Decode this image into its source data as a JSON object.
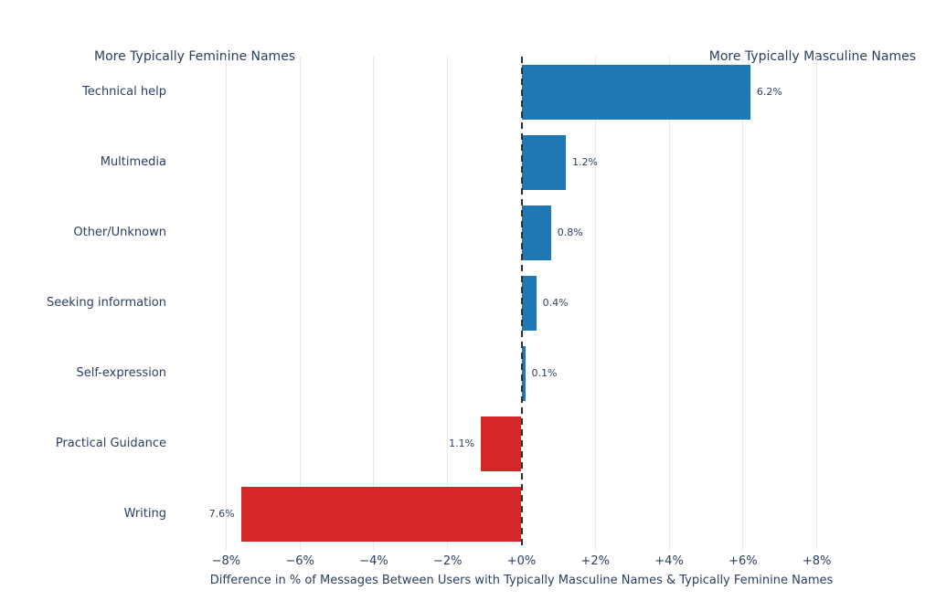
{
  "header": {
    "left_label": "More Typically Feminine Names",
    "right_label": "More Typically Masculine Names"
  },
  "chart_data": {
    "type": "bar",
    "orientation": "horizontal",
    "title": "",
    "categories": [
      "Technical help",
      "Multimedia",
      "Other/Unknown",
      "Seeking information",
      "Self-expression",
      "Practical Guidance",
      "Writing"
    ],
    "values": [
      6.2,
      1.2,
      0.8,
      0.4,
      0.1,
      -1.1,
      -7.6
    ],
    "bar_labels": [
      "6.2%",
      "1.2%",
      "0.8%",
      "0.4%",
      "0.1%",
      "1.1%",
      "7.6%"
    ],
    "xlabel": "Difference in % of Messages Between Users with Typically Masculine Names & Typically Feminine Names",
    "ylabel": "",
    "x_tick_values": [
      -8,
      -6,
      -4,
      -2,
      0,
      2,
      4,
      6,
      8
    ],
    "x_tick_labels": [
      "−8%",
      "−6%",
      "−4%",
      "−2%",
      "+0%",
      "+2%",
      "+4%",
      "+6%",
      "+8%"
    ],
    "xlim": [
      -9,
      9
    ],
    "grid": true,
    "legend": "none",
    "zero_line_style": "dashed",
    "annotations": {
      "top_left": "More Typically Feminine Names",
      "top_right": "More Typically Masculine Names"
    },
    "colors": {
      "positive_bar": "#1f77b4",
      "negative_bar": "#d62728",
      "text": "#2a3f5f",
      "gridline": "#e9e9e9",
      "zero_line": "#2f2f2f",
      "background": "#ffffff"
    }
  }
}
